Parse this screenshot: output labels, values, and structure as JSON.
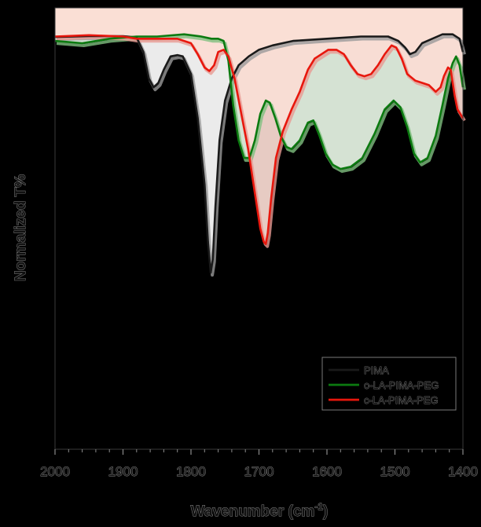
{
  "chart_data": {
    "type": "line",
    "title": "",
    "xlabel": "Wavenumber (cm",
    "xlabel_sup": "-1",
    "xlabel_end": ")",
    "ylabel": "Normalized T%",
    "xlim": [
      2000,
      1400
    ],
    "ylim": [
      0,
      1
    ],
    "x_reversed": true,
    "x_ticks": [
      "2000",
      "1900",
      "1800",
      "1700",
      "1600",
      "1500",
      "1400"
    ],
    "x_tick_values": [
      2000,
      1900,
      1800,
      1700,
      1600,
      1500,
      1400
    ],
    "y_ticks_shown": false,
    "grid": false,
    "legend_position": "bottom-right",
    "series": [
      {
        "name": "PIMA",
        "color": "#1a1a1a",
        "fill": "#ffffff",
        "shadow": "#9a9a9a",
        "points": [
          [
            2000,
            0.934
          ],
          [
            1950,
            0.936
          ],
          [
            1900,
            0.936
          ],
          [
            1880,
            0.933
          ],
          [
            1870,
            0.9
          ],
          [
            1862,
            0.84
          ],
          [
            1855,
            0.82
          ],
          [
            1848,
            0.83
          ],
          [
            1840,
            0.86
          ],
          [
            1830,
            0.89
          ],
          [
            1820,
            0.893
          ],
          [
            1812,
            0.89
          ],
          [
            1800,
            0.85
          ],
          [
            1790,
            0.75
          ],
          [
            1780,
            0.6
          ],
          [
            1775,
            0.47
          ],
          [
            1771,
            0.4
          ],
          [
            1768,
            0.43
          ],
          [
            1764,
            0.55
          ],
          [
            1758,
            0.7
          ],
          [
            1750,
            0.79
          ],
          [
            1740,
            0.84
          ],
          [
            1730,
            0.87
          ],
          [
            1715,
            0.89
          ],
          [
            1700,
            0.905
          ],
          [
            1680,
            0.915
          ],
          [
            1650,
            0.925
          ],
          [
            1600,
            0.93
          ],
          [
            1550,
            0.935
          ],
          [
            1510,
            0.935
          ],
          [
            1495,
            0.925
          ],
          [
            1485,
            0.91
          ],
          [
            1478,
            0.895
          ],
          [
            1470,
            0.9
          ],
          [
            1460,
            0.92
          ],
          [
            1445,
            0.93
          ],
          [
            1430,
            0.94
          ],
          [
            1415,
            0.94
          ],
          [
            1405,
            0.93
          ],
          [
            1400,
            0.9
          ]
        ]
      },
      {
        "name": "o-LA-PIMA-PEG",
        "color": "#0c7a10",
        "fill": "#e7f5e5",
        "shadow": "#7fbf7f",
        "points": [
          [
            2000,
            0.925
          ],
          [
            1960,
            0.92
          ],
          [
            1920,
            0.93
          ],
          [
            1880,
            0.935
          ],
          [
            1850,
            0.935
          ],
          [
            1810,
            0.94
          ],
          [
            1785,
            0.935
          ],
          [
            1770,
            0.93
          ],
          [
            1760,
            0.93
          ],
          [
            1752,
            0.925
          ],
          [
            1745,
            0.88
          ],
          [
            1738,
            0.78
          ],
          [
            1730,
            0.7
          ],
          [
            1722,
            0.66
          ],
          [
            1714,
            0.66
          ],
          [
            1706,
            0.7
          ],
          [
            1698,
            0.76
          ],
          [
            1690,
            0.79
          ],
          [
            1684,
            0.785
          ],
          [
            1676,
            0.75
          ],
          [
            1668,
            0.71
          ],
          [
            1660,
            0.685
          ],
          [
            1652,
            0.68
          ],
          [
            1640,
            0.7
          ],
          [
            1628,
            0.74
          ],
          [
            1620,
            0.745
          ],
          [
            1612,
            0.715
          ],
          [
            1602,
            0.67
          ],
          [
            1592,
            0.645
          ],
          [
            1580,
            0.635
          ],
          [
            1565,
            0.64
          ],
          [
            1548,
            0.66
          ],
          [
            1530,
            0.715
          ],
          [
            1515,
            0.77
          ],
          [
            1502,
            0.79
          ],
          [
            1492,
            0.775
          ],
          [
            1482,
            0.73
          ],
          [
            1472,
            0.67
          ],
          [
            1463,
            0.65
          ],
          [
            1452,
            0.66
          ],
          [
            1440,
            0.71
          ],
          [
            1430,
            0.78
          ],
          [
            1422,
            0.84
          ],
          [
            1415,
            0.875
          ],
          [
            1410,
            0.89
          ],
          [
            1405,
            0.87
          ],
          [
            1400,
            0.82
          ]
        ]
      },
      {
        "name": "c-LA-PIMA-PEG",
        "color": "#e8170d",
        "fill": "#fbdcd4",
        "shadow": "#e89a92",
        "points": [
          [
            2000,
            0.935
          ],
          [
            1950,
            0.938
          ],
          [
            1900,
            0.935
          ],
          [
            1880,
            0.93
          ],
          [
            1820,
            0.93
          ],
          [
            1800,
            0.92
          ],
          [
            1790,
            0.895
          ],
          [
            1780,
            0.865
          ],
          [
            1773,
            0.857
          ],
          [
            1766,
            0.87
          ],
          [
            1760,
            0.9
          ],
          [
            1752,
            0.905
          ],
          [
            1745,
            0.89
          ],
          [
            1736,
            0.84
          ],
          [
            1726,
            0.76
          ],
          [
            1716,
            0.68
          ],
          [
            1706,
            0.58
          ],
          [
            1698,
            0.5
          ],
          [
            1693,
            0.47
          ],
          [
            1690,
            0.465
          ],
          [
            1687,
            0.49
          ],
          [
            1682,
            0.57
          ],
          [
            1675,
            0.66
          ],
          [
            1665,
            0.72
          ],
          [
            1652,
            0.77
          ],
          [
            1640,
            0.81
          ],
          [
            1628,
            0.86
          ],
          [
            1618,
            0.885
          ],
          [
            1608,
            0.895
          ],
          [
            1598,
            0.905
          ],
          [
            1586,
            0.905
          ],
          [
            1575,
            0.895
          ],
          [
            1565,
            0.87
          ],
          [
            1555,
            0.85
          ],
          [
            1545,
            0.845
          ],
          [
            1535,
            0.85
          ],
          [
            1525,
            0.87
          ],
          [
            1515,
            0.895
          ],
          [
            1505,
            0.915
          ],
          [
            1498,
            0.91
          ],
          [
            1490,
            0.885
          ],
          [
            1482,
            0.85
          ],
          [
            1470,
            0.835
          ],
          [
            1460,
            0.83
          ],
          [
            1450,
            0.825
          ],
          [
            1440,
            0.81
          ],
          [
            1433,
            0.82
          ],
          [
            1428,
            0.845
          ],
          [
            1422,
            0.865
          ],
          [
            1418,
            0.86
          ],
          [
            1412,
            0.8
          ],
          [
            1408,
            0.77
          ],
          [
            1400,
            0.75
          ]
        ]
      }
    ]
  }
}
